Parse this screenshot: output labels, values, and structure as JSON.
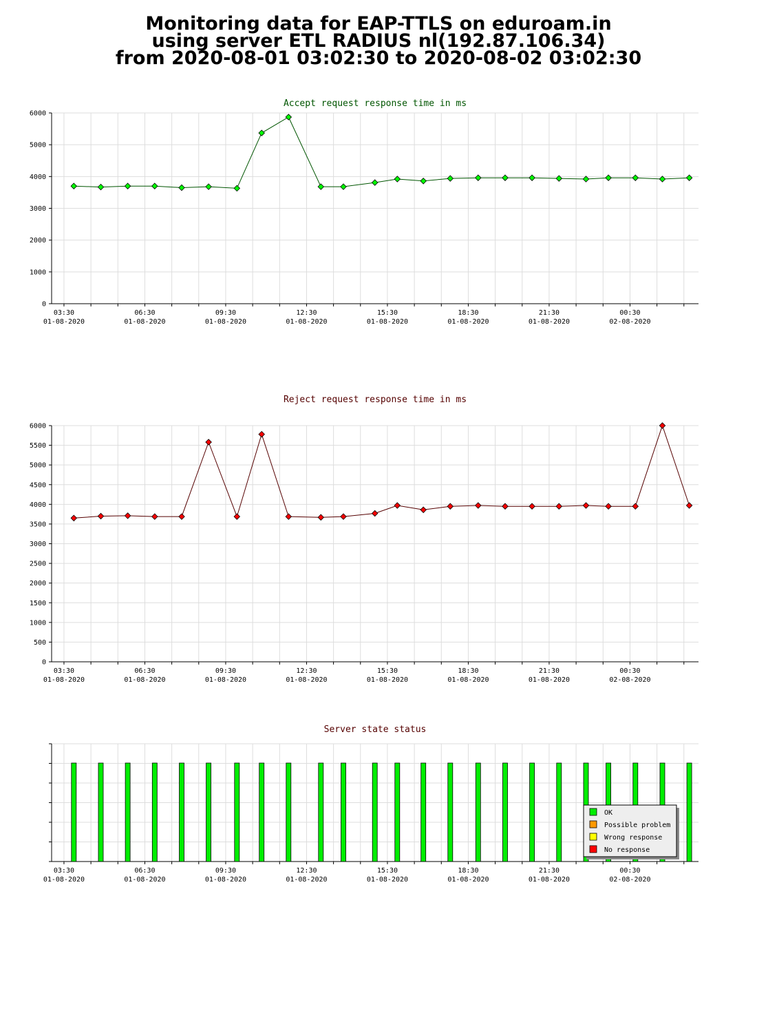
{
  "header": {
    "line1": "Monitoring data for EAP-TTLS on eduroam.in",
    "line2": "using server ETL RADIUS nl(192.87.106.34)",
    "line3": "from 2020-08-01 03:02:30 to 2020-08-02 03:02:30"
  },
  "colors": {
    "accept_line": "#005500",
    "accept_marker": "#00ff00",
    "reject_line": "#550000",
    "reject_marker": "#ff0000",
    "grid": "#dddddd",
    "ok": "#00ee00",
    "possible_problem": "#ff9900",
    "wrong_response": "#ffff00",
    "no_response": "#ff0000"
  },
  "x_ticks": [
    {
      "time": "03:30",
      "date": "01-08-2020"
    },
    {
      "time": "06:30",
      "date": "01-08-2020"
    },
    {
      "time": "09:30",
      "date": "01-08-2020"
    },
    {
      "time": "12:30",
      "date": "01-08-2020"
    },
    {
      "time": "15:30",
      "date": "01-08-2020"
    },
    {
      "time": "18:30",
      "date": "01-08-2020"
    },
    {
      "time": "21:30",
      "date": "01-08-2020"
    },
    {
      "time": "00:30",
      "date": "02-08-2020"
    }
  ],
  "chart_data": [
    {
      "type": "line",
      "title": "Accept request response time in ms",
      "xlabel": "",
      "ylabel": "",
      "xlim": [
        "2020-08-01 03:02:30",
        "2020-08-02 03:02:30"
      ],
      "ylim": [
        0,
        6000
      ],
      "y_ticks": [
        0,
        1000,
        2000,
        3000,
        4000,
        5000,
        6000
      ],
      "grid": true,
      "x": [
        "03:52",
        "04:52",
        "05:52",
        "06:52",
        "07:52",
        "08:52",
        "09:55",
        "10:50",
        "11:50",
        "13:02",
        "13:52",
        "15:02",
        "15:52",
        "16:50",
        "17:50",
        "18:52",
        "19:52",
        "20:52",
        "21:52",
        "22:52",
        "23:42",
        "00:42",
        "01:42",
        "02:42"
      ],
      "values": [
        3700,
        3670,
        3700,
        3700,
        3650,
        3680,
        3630,
        5370,
        5870,
        3680,
        3680,
        3810,
        3920,
        3860,
        3940,
        3960,
        3960,
        3960,
        3940,
        3920,
        3960,
        3960,
        3920,
        3960
      ]
    },
    {
      "type": "line",
      "title": "Reject request response time in ms",
      "xlabel": "",
      "ylabel": "",
      "xlim": [
        "2020-08-01 03:02:30",
        "2020-08-02 03:02:30"
      ],
      "ylim": [
        0,
        6000
      ],
      "y_ticks": [
        0,
        500,
        1000,
        1500,
        2000,
        2500,
        3000,
        3500,
        4000,
        4500,
        5000,
        5500,
        6000
      ],
      "grid": true,
      "x": [
        "03:52",
        "04:52",
        "05:52",
        "06:52",
        "07:52",
        "08:52",
        "09:55",
        "10:50",
        "11:50",
        "13:02",
        "13:52",
        "15:02",
        "15:52",
        "16:50",
        "17:50",
        "18:52",
        "19:52",
        "20:52",
        "21:52",
        "22:52",
        "23:42",
        "00:42",
        "01:42",
        "02:42"
      ],
      "values": [
        3650,
        3700,
        3710,
        3690,
        3690,
        5580,
        3690,
        5780,
        3690,
        3670,
        3690,
        3770,
        3970,
        3860,
        3950,
        3970,
        3950,
        3950,
        3950,
        3970,
        3950,
        3950,
        6000,
        3970
      ]
    },
    {
      "type": "bar",
      "title": "Server state status",
      "xlabel": "",
      "ylabel": "",
      "xlim": [
        "2020-08-01 03:02:30",
        "2020-08-02 03:02:30"
      ],
      "x": [
        "03:52",
        "04:52",
        "05:52",
        "06:52",
        "07:52",
        "08:52",
        "09:55",
        "10:50",
        "11:50",
        "13:02",
        "13:52",
        "15:02",
        "15:52",
        "16:50",
        "17:50",
        "18:52",
        "19:52",
        "20:52",
        "21:52",
        "22:52",
        "23:42",
        "00:42",
        "01:42",
        "02:42"
      ],
      "status": [
        "OK",
        "OK",
        "OK",
        "OK",
        "OK",
        "OK",
        "OK",
        "OK",
        "OK",
        "OK",
        "OK",
        "OK",
        "OK",
        "OK",
        "OK",
        "OK",
        "OK",
        "OK",
        "OK",
        "OK",
        "OK",
        "OK",
        "OK",
        "OK"
      ],
      "legend": [
        "OK",
        "Possible problem",
        "Wrong response",
        "No response"
      ],
      "legend_position": "bottom-right"
    }
  ]
}
